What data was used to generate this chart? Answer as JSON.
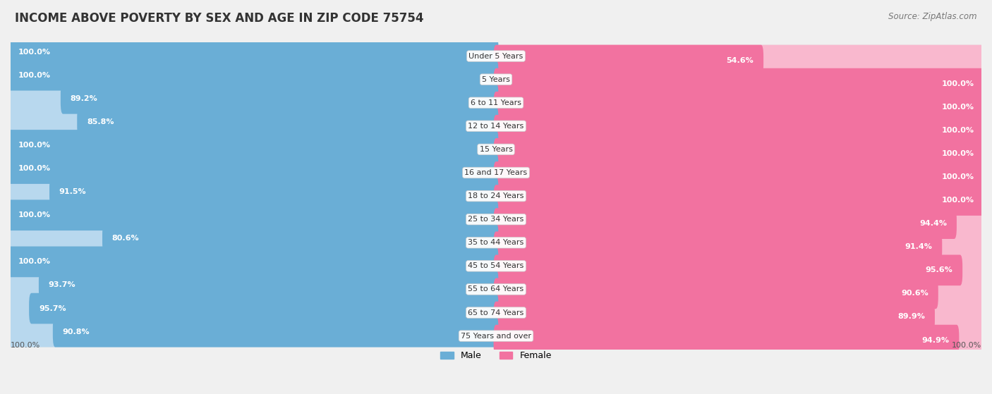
{
  "title": "INCOME ABOVE POVERTY BY SEX AND AGE IN ZIP CODE 75754",
  "source": "Source: ZipAtlas.com",
  "categories": [
    "Under 5 Years",
    "5 Years",
    "6 to 11 Years",
    "12 to 14 Years",
    "15 Years",
    "16 and 17 Years",
    "18 to 24 Years",
    "25 to 34 Years",
    "35 to 44 Years",
    "45 to 54 Years",
    "55 to 64 Years",
    "65 to 74 Years",
    "75 Years and over"
  ],
  "male_values": [
    100.0,
    100.0,
    89.2,
    85.8,
    100.0,
    100.0,
    91.5,
    100.0,
    80.6,
    100.0,
    93.7,
    95.7,
    90.8
  ],
  "female_values": [
    54.6,
    100.0,
    100.0,
    100.0,
    100.0,
    100.0,
    100.0,
    94.4,
    91.4,
    95.6,
    90.6,
    89.9,
    94.9
  ],
  "male_color": "#6aaed6",
  "female_color": "#f272a0",
  "male_color_light": "#b8d8ee",
  "female_color_light": "#f9b8ce",
  "bar_height": 0.32,
  "background_color": "#f0f0f0",
  "row_bg_color": "#e8e8e8",
  "bar_bg_color": "#ffffff",
  "title_fontsize": 12,
  "source_fontsize": 8.5,
  "label_fontsize": 8,
  "category_fontsize": 8,
  "axis_label": "100.0%"
}
